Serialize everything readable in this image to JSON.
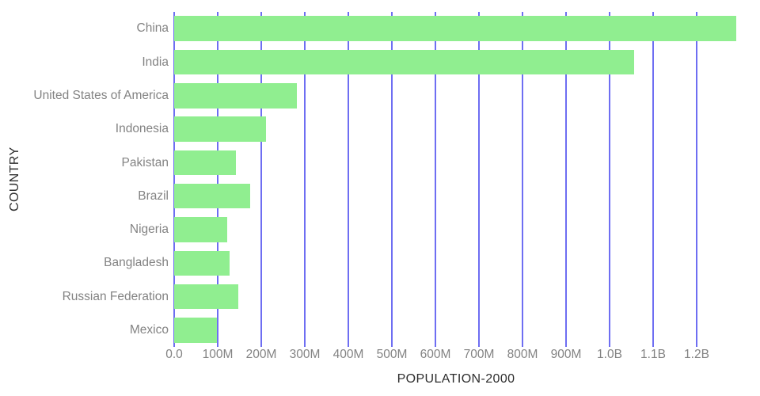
{
  "chart_data": {
    "type": "bar",
    "orientation": "horizontal",
    "xlabel": "POPULATION-2000",
    "ylabel": "COUNTRY",
    "categories": [
      "China",
      "India",
      "United States of America",
      "Indonesia",
      "Pakistan",
      "Brazil",
      "Nigeria",
      "Bangladesh",
      "Russian Federation",
      "Mexico"
    ],
    "values": [
      1290550765,
      1056575549,
      281710909,
      211513823,
      142343578,
      174790340,
      122283850,
      127657854,
      146844839,
      98899845
    ],
    "units": "people",
    "xlim": [
      0,
      1320000000
    ],
    "xticks": [
      {
        "label": "0.0",
        "value": 0
      },
      {
        "label": "100M",
        "value": 100000000
      },
      {
        "label": "200M",
        "value": 200000000
      },
      {
        "label": "300M",
        "value": 300000000
      },
      {
        "label": "400M",
        "value": 400000000
      },
      {
        "label": "500M",
        "value": 500000000
      },
      {
        "label": "600M",
        "value": 600000000
      },
      {
        "label": "700M",
        "value": 700000000
      },
      {
        "label": "800M",
        "value": 800000000
      },
      {
        "label": "900M",
        "value": 900000000
      },
      {
        "label": "1.0B",
        "value": 1000000000
      },
      {
        "label": "1.1B",
        "value": 1100000000
      },
      {
        "label": "1.2B",
        "value": 1200000000
      }
    ],
    "grid": "vertical",
    "legend": "none",
    "colors": {
      "bar": "#90ee90",
      "grid": "#6e6ef2",
      "tick_label": "#838383",
      "axis_title": "#2d2d2d",
      "background": "#ffffff"
    }
  }
}
